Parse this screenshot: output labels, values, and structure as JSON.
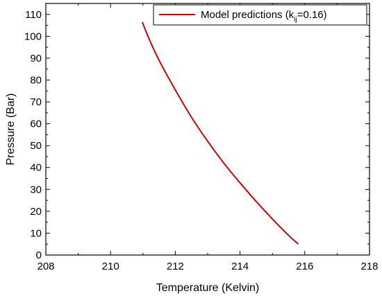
{
  "chart_data": {
    "type": "line",
    "title": "",
    "xlabel": "Temperature (Kelvin)",
    "ylabel": "Pressure (Bar)",
    "xlim": [
      208,
      218
    ],
    "ylim": [
      0,
      115
    ],
    "xticks": [
      208,
      210,
      212,
      214,
      216,
      218
    ],
    "yticks": [
      0,
      10,
      20,
      30,
      40,
      50,
      60,
      70,
      80,
      90,
      100,
      110
    ],
    "grid": false,
    "legend_position": "top-right",
    "legend": {
      "prefix": "Model  predictions (k",
      "subscript": "ij",
      "suffix": "=0.16)"
    },
    "series": [
      {
        "name": "Model  predictions (kij=0.16)",
        "color": "#cc0000",
        "x": [
          210.98,
          211.2,
          211.5,
          212.0,
          212.5,
          213.0,
          213.5,
          214.0,
          214.5,
          215.0,
          215.5,
          215.8
        ],
        "y": [
          106.5,
          98.5,
          89.0,
          75.5,
          63.0,
          52.0,
          42.0,
          33.0,
          24.5,
          16.5,
          9.0,
          5.0
        ]
      }
    ]
  }
}
